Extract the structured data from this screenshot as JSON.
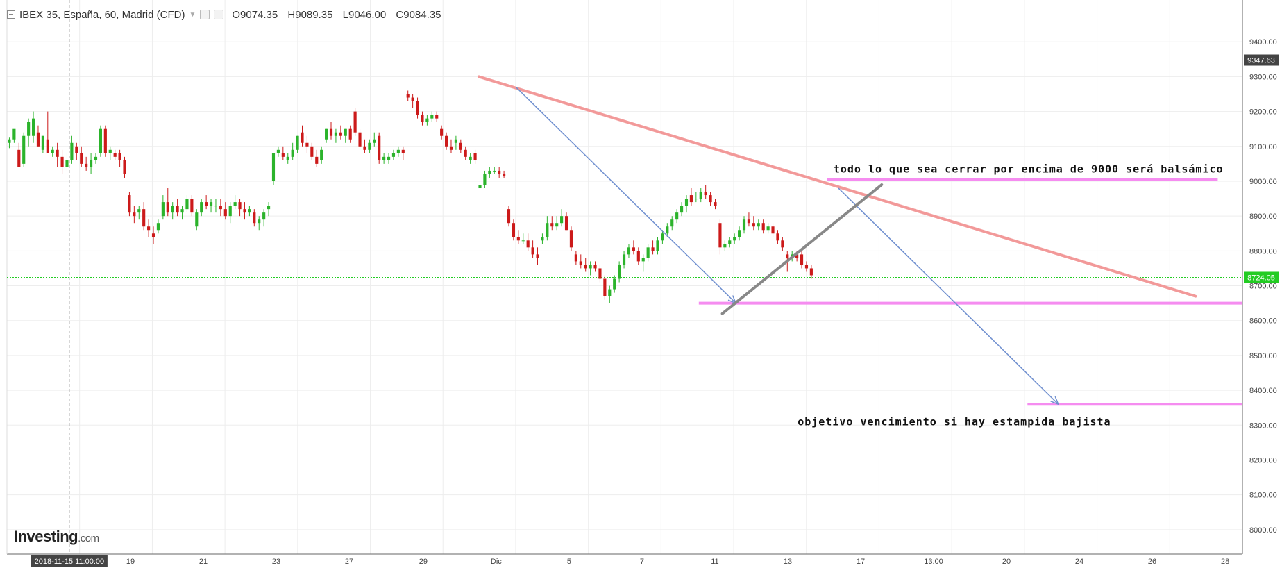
{
  "header": {
    "symbol": "IBEX 35, España, 60, Madrid (CFD)",
    "open": "O9074.35",
    "high": "H9089.35",
    "low": "L9046.00",
    "close": "C9084.35"
  },
  "logo": {
    "name": "Investing",
    "suffix": ".com"
  },
  "chart_data": {
    "type": "candlestick",
    "y_axis": {
      "range": [
        7930,
        9520
      ],
      "ticks": [
        8000,
        8100,
        8200,
        8300,
        8400,
        8500,
        8600,
        8700,
        8800,
        8900,
        9000,
        9100,
        9200,
        9300,
        9400
      ],
      "tick_labels": [
        "8000.00",
        "8100.00",
        "8200.00",
        "8300.00",
        "8400.00",
        "8500.00",
        "8600.00",
        "8700.00",
        "8800.00",
        "8900.00",
        "9000.00",
        "9100.00",
        "9200.00",
        "9300.00",
        "9400.00"
      ],
      "position": "right",
      "grid": true
    },
    "x_axis": {
      "tick_labels": [
        "19",
        "21",
        "23",
        "27",
        "29",
        "Dic",
        "5",
        "7",
        "11",
        "13",
        "17",
        "13:00",
        "20",
        "24",
        "26",
        "28"
      ],
      "crosshair_label": "2018-11-15 11:00:00",
      "grid": true
    },
    "price_marks": [
      {
        "label": "9347.63",
        "value": 9347.63,
        "style": "dashed-crosshair"
      },
      {
        "label": "8724.05",
        "value": 8724.05,
        "style": "current-price",
        "color": "#22cc22"
      }
    ],
    "colors": {
      "up": "#2bb32b",
      "down": "#cc1a1a",
      "trendline": "#f29999",
      "horizontal": "#f58cf0",
      "arrow": "#6f8fcf",
      "channel": "#888888"
    },
    "candles": [
      {
        "o": 9110,
        "h": 9125,
        "l": 9095,
        "c": 9120
      },
      {
        "o": 9120,
        "h": 9140,
        "l": 9110,
        "c": 9150
      },
      {
        "o": 9090,
        "h": 9110,
        "l": 9040,
        "c": 9040
      },
      {
        "o": 9050,
        "h": 9140,
        "l": 9040,
        "c": 9130
      },
      {
        "o": 9130,
        "h": 9180,
        "l": 9100,
        "c": 9170
      },
      {
        "o": 9130,
        "h": 9200,
        "l": 9110,
        "c": 9180
      },
      {
        "o": 9140,
        "h": 9160,
        "l": 9100,
        "c": 9100
      },
      {
        "o": 9090,
        "h": 9130,
        "l": 9080,
        "c": 9130
      },
      {
        "o": 9120,
        "h": 9200,
        "l": 9080,
        "c": 9080
      },
      {
        "o": 9080,
        "h": 9100,
        "l": 9070,
        "c": 9090
      },
      {
        "o": 9090,
        "h": 9110,
        "l": 9040,
        "c": 9070
      },
      {
        "o": 9070,
        "h": 9090,
        "l": 9020,
        "c": 9040
      },
      {
        "o": 9040,
        "h": 9080,
        "l": 9030,
        "c": 9060
      },
      {
        "o": 9060,
        "h": 9130,
        "l": 9050,
        "c": 9110
      },
      {
        "o": 9100,
        "h": 9110,
        "l": 9060,
        "c": 9080
      },
      {
        "o": 9080,
        "h": 9100,
        "l": 9040,
        "c": 9050
      },
      {
        "o": 9050,
        "h": 9070,
        "l": 9030,
        "c": 9040
      },
      {
        "o": 9040,
        "h": 9080,
        "l": 9020,
        "c": 9060
      },
      {
        "o": 9060,
        "h": 9080,
        "l": 9050,
        "c": 9070
      },
      {
        "o": 9080,
        "h": 9160,
        "l": 9070,
        "c": 9150
      },
      {
        "o": 9150,
        "h": 9160,
        "l": 9070,
        "c": 9080
      },
      {
        "o": 9080,
        "h": 9100,
        "l": 9060,
        "c": 9090
      },
      {
        "o": 9080,
        "h": 9090,
        "l": 9060,
        "c": 9070
      },
      {
        "o": 9080,
        "h": 9090,
        "l": 9040,
        "c": 9060
      },
      {
        "o": 9060,
        "h": 9070,
        "l": 9010,
        "c": 9020
      },
      {
        "o": 8960,
        "h": 8970,
        "l": 8900,
        "c": 8910
      },
      {
        "o": 8910,
        "h": 8930,
        "l": 8880,
        "c": 8900
      },
      {
        "o": 8910,
        "h": 8930,
        "l": 8890,
        "c": 8920
      },
      {
        "o": 8920,
        "h": 8940,
        "l": 8860,
        "c": 8870
      },
      {
        "o": 8870,
        "h": 8890,
        "l": 8840,
        "c": 8860
      },
      {
        "o": 8850,
        "h": 8870,
        "l": 8820,
        "c": 8840
      },
      {
        "o": 8860,
        "h": 8890,
        "l": 8850,
        "c": 8880
      },
      {
        "o": 8900,
        "h": 8960,
        "l": 8890,
        "c": 8940
      },
      {
        "o": 8940,
        "h": 8980,
        "l": 8900,
        "c": 8910
      },
      {
        "o": 8910,
        "h": 8940,
        "l": 8890,
        "c": 8930
      },
      {
        "o": 8930,
        "h": 8950,
        "l": 8900,
        "c": 8910
      },
      {
        "o": 8910,
        "h": 8930,
        "l": 8890,
        "c": 8920
      },
      {
        "o": 8920,
        "h": 8960,
        "l": 8910,
        "c": 8950
      },
      {
        "o": 8950,
        "h": 8960,
        "l": 8900,
        "c": 8910
      },
      {
        "o": 8870,
        "h": 8920,
        "l": 8860,
        "c": 8910
      },
      {
        "o": 8910,
        "h": 8950,
        "l": 8900,
        "c": 8940
      },
      {
        "o": 8940,
        "h": 8960,
        "l": 8920,
        "c": 8930
      },
      {
        "o": 8930,
        "h": 8950,
        "l": 8910,
        "c": 8940
      },
      {
        "o": 8930,
        "h": 8950,
        "l": 8910,
        "c": 8930
      },
      {
        "o": 8930,
        "h": 8950,
        "l": 8900,
        "c": 8920
      },
      {
        "o": 8920,
        "h": 8940,
        "l": 8890,
        "c": 8900
      },
      {
        "o": 8900,
        "h": 8940,
        "l": 8880,
        "c": 8930
      },
      {
        "o": 8930,
        "h": 8960,
        "l": 8920,
        "c": 8940
      },
      {
        "o": 8940,
        "h": 8950,
        "l": 8900,
        "c": 8920
      },
      {
        "o": 8920,
        "h": 8940,
        "l": 8890,
        "c": 8910
      },
      {
        "o": 8910,
        "h": 8930,
        "l": 8900,
        "c": 8920
      },
      {
        "o": 8910,
        "h": 8920,
        "l": 8870,
        "c": 8880
      },
      {
        "o": 8880,
        "h": 8900,
        "l": 8860,
        "c": 8890
      },
      {
        "o": 8890,
        "h": 8920,
        "l": 8870,
        "c": 8910
      },
      {
        "o": 8920,
        "h": 8940,
        "l": 8900,
        "c": 8930
      },
      {
        "o": 9000,
        "h": 9080,
        "l": 8990,
        "c": 9080
      },
      {
        "o": 9080,
        "h": 9100,
        "l": 9070,
        "c": 9090
      },
      {
        "o": 9080,
        "h": 9100,
        "l": 9060,
        "c": 9070
      },
      {
        "o": 9060,
        "h": 9080,
        "l": 9050,
        "c": 9070
      },
      {
        "o": 9070,
        "h": 9110,
        "l": 9060,
        "c": 9090
      },
      {
        "o": 9090,
        "h": 9130,
        "l": 9080,
        "c": 9130
      },
      {
        "o": 9140,
        "h": 9160,
        "l": 9100,
        "c": 9110
      },
      {
        "o": 9110,
        "h": 9130,
        "l": 9080,
        "c": 9100
      },
      {
        "o": 9100,
        "h": 9110,
        "l": 9060,
        "c": 9070
      },
      {
        "o": 9070,
        "h": 9090,
        "l": 9040,
        "c": 9050
      },
      {
        "o": 9060,
        "h": 9100,
        "l": 9050,
        "c": 9090
      },
      {
        "o": 9120,
        "h": 9150,
        "l": 9110,
        "c": 9150
      },
      {
        "o": 9150,
        "h": 9170,
        "l": 9120,
        "c": 9130
      },
      {
        "o": 9130,
        "h": 9150,
        "l": 9110,
        "c": 9140
      },
      {
        "o": 9140,
        "h": 9160,
        "l": 9120,
        "c": 9130
      },
      {
        "o": 9130,
        "h": 9150,
        "l": 9110,
        "c": 9150
      },
      {
        "o": 9150,
        "h": 9160,
        "l": 9110,
        "c": 9120
      },
      {
        "o": 9200,
        "h": 9210,
        "l": 9130,
        "c": 9140
      },
      {
        "o": 9140,
        "h": 9150,
        "l": 9090,
        "c": 9100
      },
      {
        "o": 9100,
        "h": 9120,
        "l": 9080,
        "c": 9090
      },
      {
        "o": 9090,
        "h": 9120,
        "l": 9080,
        "c": 9110
      },
      {
        "o": 9110,
        "h": 9140,
        "l": 9100,
        "c": 9120
      },
      {
        "o": 9130,
        "h": 9140,
        "l": 9050,
        "c": 9060
      },
      {
        "o": 9060,
        "h": 9080,
        "l": 9050,
        "c": 9070
      },
      {
        "o": 9060,
        "h": 9080,
        "l": 9050,
        "c": 9070
      },
      {
        "o": 9070,
        "h": 9090,
        "l": 9060,
        "c": 9080
      },
      {
        "o": 9080,
        "h": 9100,
        "l": 9070,
        "c": 9090
      },
      {
        "o": 9090,
        "h": 9100,
        "l": 9060,
        "c": 9080
      },
      {
        "o": 9250,
        "h": 9260,
        "l": 9230,
        "c": 9240
      },
      {
        "o": 9240,
        "h": 9250,
        "l": 9210,
        "c": 9230
      },
      {
        "o": 9230,
        "h": 9240,
        "l": 9180,
        "c": 9190
      },
      {
        "o": 9190,
        "h": 9200,
        "l": 9160,
        "c": 9170
      },
      {
        "o": 9170,
        "h": 9190,
        "l": 9160,
        "c": 9180
      },
      {
        "o": 9180,
        "h": 9200,
        "l": 9170,
        "c": 9190
      },
      {
        "o": 9190,
        "h": 9200,
        "l": 9170,
        "c": 9180
      },
      {
        "o": 9150,
        "h": 9160,
        "l": 9120,
        "c": 9130
      },
      {
        "o": 9130,
        "h": 9140,
        "l": 9090,
        "c": 9100
      },
      {
        "o": 9100,
        "h": 9120,
        "l": 9080,
        "c": 9090
      },
      {
        "o": 9110,
        "h": 9130,
        "l": 9090,
        "c": 9120
      },
      {
        "o": 9110,
        "h": 9120,
        "l": 9080,
        "c": 9090
      },
      {
        "o": 9090,
        "h": 9100,
        "l": 9060,
        "c": 9070
      },
      {
        "o": 9060,
        "h": 9080,
        "l": 9050,
        "c": 9070
      },
      {
        "o": 9080,
        "h": 9090,
        "l": 9050,
        "c": 9060
      },
      {
        "o": 8980,
        "h": 9000,
        "l": 8950,
        "c": 8990
      },
      {
        "o": 8990,
        "h": 9030,
        "l": 8980,
        "c": 9020
      },
      {
        "o": 9020,
        "h": 9040,
        "l": 9010,
        "c": 9030
      },
      {
        "o": 9030,
        "h": 9040,
        "l": 9020,
        "c": 9030
      },
      {
        "o": 9030,
        "h": 9040,
        "l": 9010,
        "c": 9020
      },
      {
        "o": 9020,
        "h": 9030,
        "l": 9010,
        "c": 9015
      },
      {
        "o": 8920,
        "h": 8930,
        "l": 8870,
        "c": 8880
      },
      {
        "o": 8880,
        "h": 8890,
        "l": 8830,
        "c": 8840
      },
      {
        "o": 8840,
        "h": 8860,
        "l": 8820,
        "c": 8830
      },
      {
        "o": 8830,
        "h": 8850,
        "l": 8820,
        "c": 8830
      },
      {
        "o": 8830,
        "h": 8850,
        "l": 8800,
        "c": 8810
      },
      {
        "o": 8810,
        "h": 8830,
        "l": 8780,
        "c": 8790
      },
      {
        "o": 8790,
        "h": 8810,
        "l": 8760,
        "c": 8780
      },
      {
        "o": 8830,
        "h": 8850,
        "l": 8820,
        "c": 8840
      },
      {
        "o": 8840,
        "h": 8900,
        "l": 8830,
        "c": 8880
      },
      {
        "o": 8880,
        "h": 8900,
        "l": 8860,
        "c": 8870
      },
      {
        "o": 8870,
        "h": 8900,
        "l": 8860,
        "c": 8880
      },
      {
        "o": 8880,
        "h": 8920,
        "l": 8870,
        "c": 8900
      },
      {
        "o": 8900,
        "h": 8910,
        "l": 8860,
        "c": 8860
      },
      {
        "o": 8860,
        "h": 8870,
        "l": 8800,
        "c": 8810
      },
      {
        "o": 8790,
        "h": 8800,
        "l": 8760,
        "c": 8770
      },
      {
        "o": 8770,
        "h": 8790,
        "l": 8750,
        "c": 8760
      },
      {
        "o": 8760,
        "h": 8780,
        "l": 8740,
        "c": 8750
      },
      {
        "o": 8750,
        "h": 8770,
        "l": 8730,
        "c": 8760
      },
      {
        "o": 8760,
        "h": 8770,
        "l": 8740,
        "c": 8750
      },
      {
        "o": 8750,
        "h": 8760,
        "l": 8710,
        "c": 8720
      },
      {
        "o": 8720,
        "h": 8730,
        "l": 8660,
        "c": 8670
      },
      {
        "o": 8670,
        "h": 8700,
        "l": 8650,
        "c": 8690
      },
      {
        "o": 8690,
        "h": 8730,
        "l": 8680,
        "c": 8720
      },
      {
        "o": 8720,
        "h": 8770,
        "l": 8710,
        "c": 8760
      },
      {
        "o": 8760,
        "h": 8800,
        "l": 8750,
        "c": 8790
      },
      {
        "o": 8790,
        "h": 8820,
        "l": 8780,
        "c": 8810
      },
      {
        "o": 8810,
        "h": 8830,
        "l": 8790,
        "c": 8800
      },
      {
        "o": 8800,
        "h": 8810,
        "l": 8760,
        "c": 8770
      },
      {
        "o": 8770,
        "h": 8790,
        "l": 8740,
        "c": 8780
      },
      {
        "o": 8780,
        "h": 8820,
        "l": 8770,
        "c": 8810
      },
      {
        "o": 8810,
        "h": 8830,
        "l": 8790,
        "c": 8800
      },
      {
        "o": 8800,
        "h": 8840,
        "l": 8790,
        "c": 8830
      },
      {
        "o": 8830,
        "h": 8860,
        "l": 8820,
        "c": 8850
      },
      {
        "o": 8850,
        "h": 8880,
        "l": 8840,
        "c": 8870
      },
      {
        "o": 8870,
        "h": 8900,
        "l": 8860,
        "c": 8890
      },
      {
        "o": 8890,
        "h": 8920,
        "l": 8880,
        "c": 8910
      },
      {
        "o": 8910,
        "h": 8940,
        "l": 8900,
        "c": 8930
      },
      {
        "o": 8930,
        "h": 8960,
        "l": 8910,
        "c": 8950
      },
      {
        "o": 8960,
        "h": 8980,
        "l": 8930,
        "c": 8940
      },
      {
        "o": 8950,
        "h": 8970,
        "l": 8940,
        "c": 8950
      },
      {
        "o": 8950,
        "h": 8980,
        "l": 8940,
        "c": 8970
      },
      {
        "o": 8970,
        "h": 8990,
        "l": 8950,
        "c": 8960
      },
      {
        "o": 8960,
        "h": 8970,
        "l": 8930,
        "c": 8940
      },
      {
        "o": 8940,
        "h": 8950,
        "l": 8920,
        "c": 8930
      },
      {
        "o": 8880,
        "h": 8890,
        "l": 8790,
        "c": 8810
      },
      {
        "o": 8810,
        "h": 8830,
        "l": 8800,
        "c": 8820
      },
      {
        "o": 8820,
        "h": 8840,
        "l": 8810,
        "c": 8830
      },
      {
        "o": 8830,
        "h": 8850,
        "l": 8820,
        "c": 8840
      },
      {
        "o": 8840,
        "h": 8870,
        "l": 8830,
        "c": 8860
      },
      {
        "o": 8860,
        "h": 8900,
        "l": 8850,
        "c": 8890
      },
      {
        "o": 8890,
        "h": 8910,
        "l": 8870,
        "c": 8880
      },
      {
        "o": 8880,
        "h": 8900,
        "l": 8860,
        "c": 8870
      },
      {
        "o": 8870,
        "h": 8890,
        "l": 8860,
        "c": 8880
      },
      {
        "o": 8880,
        "h": 8890,
        "l": 8850,
        "c": 8860
      },
      {
        "o": 8860,
        "h": 8880,
        "l": 8850,
        "c": 8870
      },
      {
        "o": 8870,
        "h": 8880,
        "l": 8840,
        "c": 8850
      },
      {
        "o": 8850,
        "h": 8860,
        "l": 8820,
        "c": 8830
      },
      {
        "o": 8830,
        "h": 8840,
        "l": 8800,
        "c": 8810
      },
      {
        "o": 8790,
        "h": 8800,
        "l": 8740,
        "c": 8780
      },
      {
        "o": 8780,
        "h": 8800,
        "l": 8770,
        "c": 8790
      },
      {
        "o": 8790,
        "h": 8800,
        "l": 8770,
        "c": 8780
      },
      {
        "o": 8790,
        "h": 8800,
        "l": 8750,
        "c": 8760
      },
      {
        "o": 8760,
        "h": 8770,
        "l": 8740,
        "c": 8750
      },
      {
        "o": 8750,
        "h": 8760,
        "l": 8720,
        "c": 8730
      }
    ],
    "annotations": [
      {
        "type": "text",
        "text": "todo lo que sea cerrar por encima de 9000 será balsámico"
      },
      {
        "type": "text",
        "text": "objetivo vencimiento si hay estampida bajista"
      },
      {
        "type": "trendline",
        "from": [
          9300,
          0.382
        ],
        "to": [
          8670,
          0.962
        ],
        "color": "#f29999"
      },
      {
        "type": "horizontal",
        "value": 9005,
        "span": [
          0.664,
          0.98
        ],
        "color": "#f58cf0"
      },
      {
        "type": "horizontal",
        "value": 8650,
        "span": [
          0.56,
          1.0
        ],
        "color": "#f58cf0"
      },
      {
        "type": "horizontal",
        "value": 8360,
        "span": [
          0.826,
          1.0
        ],
        "color": "#f58cf0"
      },
      {
        "type": "arrow",
        "from": [
          9270,
          0.412
        ],
        "to": [
          8650,
          0.59
        ],
        "color": "#6f8fcf"
      },
      {
        "type": "arrow",
        "from": [
          8980,
          0.673
        ],
        "to": [
          8360,
          0.851
        ],
        "color": "#6f8fcf"
      },
      {
        "type": "channel",
        "from": [
          8620,
          0.579
        ],
        "to": [
          8990,
          0.708
        ],
        "color": "#888888"
      }
    ]
  }
}
